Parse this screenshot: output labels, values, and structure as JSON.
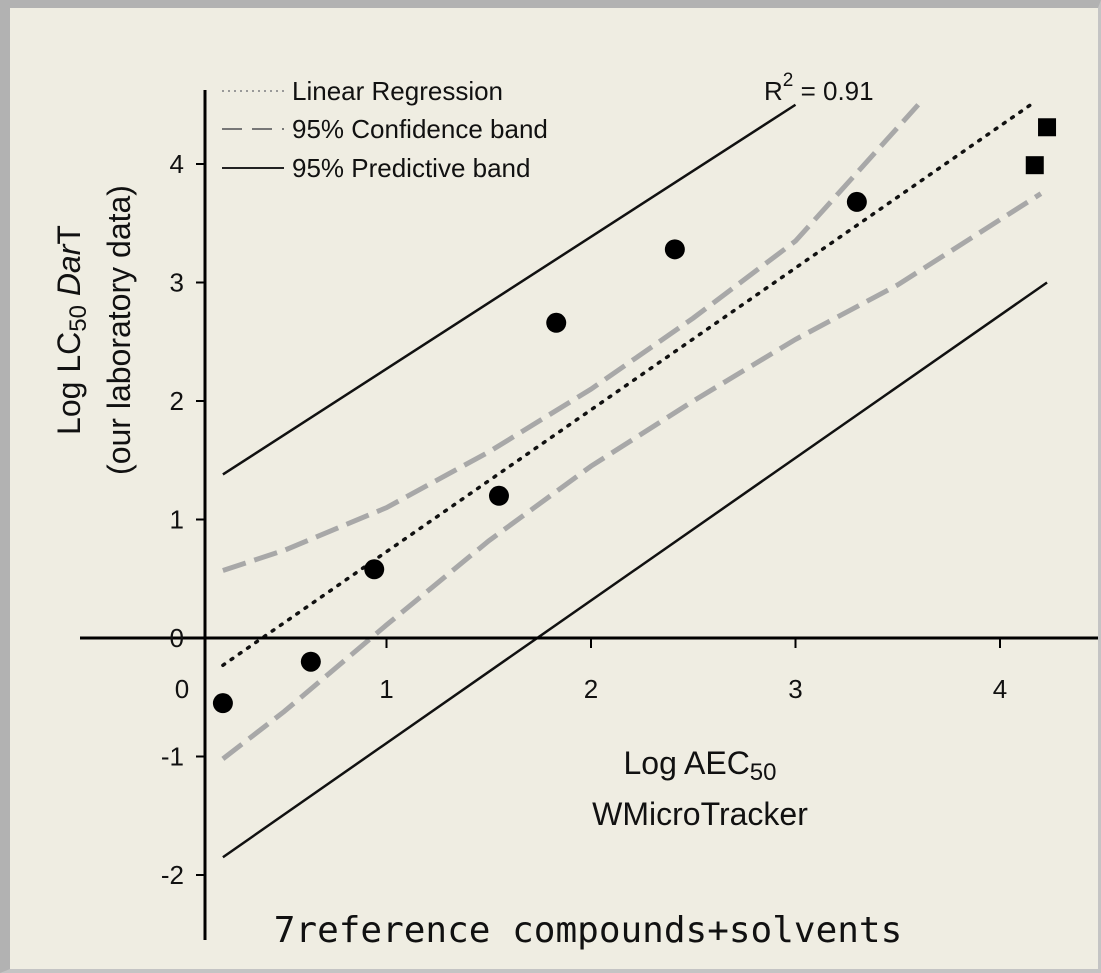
{
  "chart_data": {
    "type": "scatter",
    "xlabel": [
      "Log AEC50",
      "WMicroTracker"
    ],
    "ylabel": [
      "Log LC50 DarT",
      "(our laboratory data)"
    ],
    "xlim": [
      -0.6,
      4.4
    ],
    "ylim": [
      -2.3,
      4.5
    ],
    "x_ticks": [
      0,
      1,
      2,
      3,
      4
    ],
    "y_ticks": [
      -2,
      -1,
      0,
      1,
      2,
      3,
      4
    ],
    "x_tick_labels": [
      "0",
      "1",
      "2",
      "3",
      "4"
    ],
    "y_tick_labels": [
      "-2",
      "-1",
      "0",
      "1",
      "2",
      "3",
      "4"
    ],
    "annotation": {
      "text": "R",
      "superscript": "2",
      "rest": " = 0.91"
    },
    "legend": {
      "placement": "top-left",
      "entries": [
        {
          "label": "Linear Regression",
          "style": "dotted"
        },
        {
          "label": "95% Confidence band",
          "style": "dashed"
        },
        {
          "label": "95% Predictive band",
          "style": "solid"
        }
      ]
    },
    "footer": "7reference compounds+solvents",
    "series": [
      {
        "marker": "circle",
        "x": [
          0.2,
          0.63,
          0.94,
          1.55,
          1.83,
          2.41,
          3.3
        ],
        "y": [
          -0.55,
          -0.2,
          0.58,
          1.2,
          2.66,
          3.28,
          3.68
        ]
      },
      {
        "marker": "square",
        "x": [
          4.17,
          4.23
        ],
        "y": [
          3.99,
          4.31
        ]
      }
    ],
    "lines": {
      "regression": {
        "x": [
          0.2,
          4.15
        ],
        "y": [
          -0.23,
          4.5
        ]
      },
      "confidence_upper": [
        [
          0.2,
          0.57
        ],
        [
          0.5,
          0.74
        ],
        [
          1.0,
          1.1
        ],
        [
          1.5,
          1.57
        ],
        [
          2.0,
          2.1
        ],
        [
          2.5,
          2.7
        ],
        [
          3.0,
          3.35
        ],
        [
          3.6,
          4.5
        ]
      ],
      "confidence_lower": [
        [
          0.2,
          -1.02
        ],
        [
          0.5,
          -0.62
        ],
        [
          1.0,
          0.11
        ],
        [
          1.5,
          0.82
        ],
        [
          2.0,
          1.45
        ],
        [
          2.5,
          2.0
        ],
        [
          3.0,
          2.52
        ],
        [
          3.5,
          2.98
        ],
        [
          4.2,
          3.75
        ]
      ],
      "predictive_upper": {
        "x": [
          0.2,
          3.0
        ],
        "y": [
          1.38,
          4.5
        ]
      },
      "predictive_lower": {
        "x": [
          0.2,
          4.23
        ],
        "y": [
          -1.85,
          3.0
        ]
      }
    },
    "grid": false
  }
}
